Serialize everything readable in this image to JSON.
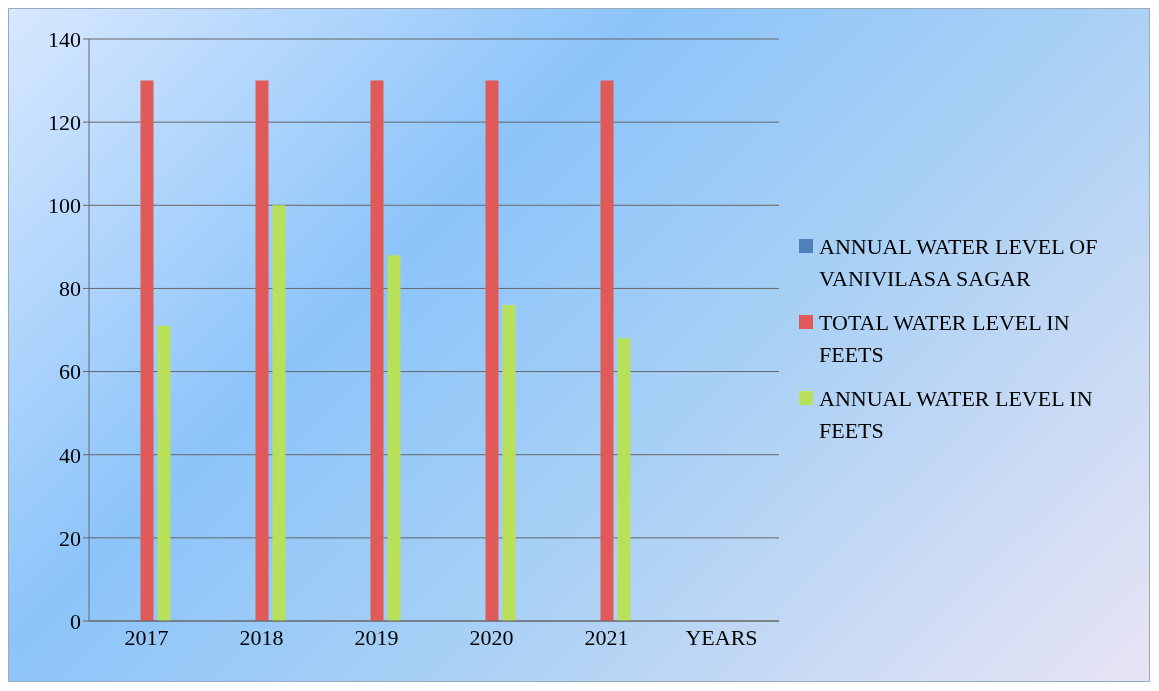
{
  "chart_data": {
    "type": "bar",
    "categories": [
      "2017",
      "2018",
      "2019",
      "2020",
      "2021",
      "YEARS"
    ],
    "series": [
      {
        "name": "ANNUAL WATER LEVEL OF VANIVILASA SAGAR",
        "color": "#4f81bd",
        "values": [
          null,
          null,
          null,
          null,
          null,
          null
        ]
      },
      {
        "name": "TOTAL WATER LEVEL IN FEETS",
        "color": "#e05a5a",
        "values": [
          130,
          130,
          130,
          130,
          130,
          null
        ]
      },
      {
        "name": "ANNUAL WATER  LEVEL IN FEETS",
        "color": "#b8e05a",
        "values": [
          71,
          100,
          88,
          76,
          68,
          null
        ]
      }
    ],
    "ylim": [
      0,
      140
    ],
    "yticks": [
      0,
      20,
      40,
      60,
      80,
      100,
      120,
      140
    ],
    "grid": "y",
    "legend": "right"
  }
}
